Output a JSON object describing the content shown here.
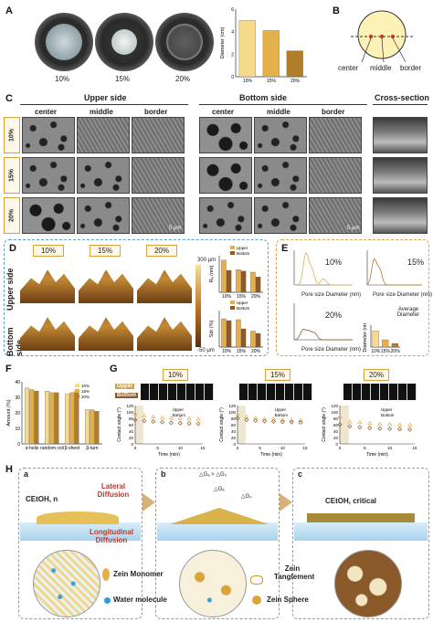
{
  "panels": {
    "A": {
      "label": "A",
      "dish_labels": [
        "10%",
        "15%",
        "20%"
      ]
    },
    "B": {
      "label": "B",
      "positions": [
        "center",
        "middle",
        "border"
      ]
    },
    "C": {
      "label": "C",
      "upper_side": "Upper side",
      "bottom_side": "Bottom side",
      "cross_section": "Cross-section",
      "columns": [
        "center",
        "middle",
        "border"
      ],
      "rows": [
        "10%",
        "15%",
        "20%"
      ],
      "scale_bar": "5 μm"
    },
    "D": {
      "label": "D",
      "concentrations": [
        "10%",
        "15%",
        "20%"
      ],
      "row_labels": [
        "Upper side",
        "Bottom side"
      ],
      "colorbar_top": "300 μm",
      "colorbar_bottom": "-50 μm"
    },
    "E": {
      "label": "E",
      "pcts": [
        "10%",
        "15%",
        "20%"
      ],
      "xlabel": "Pore size Diameter (nm)",
      "ylabel": "Incremental Intrusion (mL/g)",
      "avg_label": "Average Diameter",
      "avg_ylabel": "Diameter (nm)"
    },
    "F": {
      "label": "F"
    },
    "G": {
      "label": "G",
      "concentrations": [
        "10%",
        "15%",
        "20%"
      ],
      "strip_labels": [
        "Upper",
        "Bottom"
      ],
      "legend": [
        "Upper",
        "Bottom"
      ]
    },
    "H": {
      "label": "H",
      "sub_a": "a",
      "sub_b": "b",
      "sub_c": "c",
      "c_etoh_n": "CEtOH, n",
      "lateral": "Lateral Diffusion",
      "longitudinal": "Longitudinal Diffusion",
      "delta": "△Gₐ > △G₀",
      "delta_a": "△Gₐ",
      "delta_b": "△G₀",
      "c_critical": "CEtOH, critical",
      "legend_monomer": "Zein Monomer",
      "legend_water": "Water molecule",
      "legend_tanglement": "Zein Tanglement",
      "legend_sphere": "Zein Sphere"
    }
  },
  "chart_data": [
    {
      "type": "bar",
      "panel": "A",
      "categories": [
        "10%",
        "15%",
        "20%"
      ],
      "values": [
        5.0,
        4.1,
        2.3
      ],
      "ylabel": "Diameter (cm)",
      "ylim": [
        0,
        6
      ],
      "yticks": [
        "0",
        "2",
        "4",
        "6"
      ],
      "colors": [
        "#f6d98a",
        "#e3b04b",
        "#b07d2a"
      ]
    },
    {
      "type": "bar",
      "panel": "D-Ra",
      "categories": [
        "10%",
        "15%",
        "20%"
      ],
      "series": [
        {
          "name": "Upper",
          "values": [
            88,
            62,
            55
          ]
        },
        {
          "name": "Bottom",
          "values": [
            60,
            58,
            42
          ]
        }
      ],
      "ylabel": "Rₐ (nm)",
      "legend": "top",
      "ylim": [
        0,
        100
      ]
    },
    {
      "type": "bar",
      "panel": "D-Sdr",
      "categories": [
        "10%",
        "15%",
        "20%"
      ],
      "series": [
        {
          "name": "Upper",
          "values": [
            62,
            60,
            35
          ]
        },
        {
          "name": "Bottom",
          "values": [
            58,
            40,
            30
          ]
        }
      ],
      "ylabel": "Sdr (%)",
      "legend": "top",
      "ylim": [
        0,
        80
      ]
    },
    {
      "type": "bar",
      "panel": "E-avg",
      "categories": [
        "10%",
        "15%",
        "20%"
      ],
      "values": [
        2200,
        1000,
        500
      ],
      "ylabel": "Diameter (nm)",
      "ylim": [
        0,
        3000
      ],
      "colors": [
        "#f6d98a",
        "#e3b04b",
        "#b07d2a"
      ]
    },
    {
      "type": "bar",
      "panel": "F",
      "categories": [
        "α-helix",
        "random coil",
        "β-sheet",
        "β-turn"
      ],
      "series": [
        {
          "name": "10%",
          "values": [
            36,
            34,
            32,
            22
          ]
        },
        {
          "name": "15%",
          "values": [
            35,
            33,
            33,
            22
          ]
        },
        {
          "name": "20%",
          "values": [
            34,
            33,
            34,
            21
          ]
        }
      ],
      "ylabel": "Amount (%)",
      "ylim": [
        0,
        40
      ],
      "yticks": [
        "0",
        "10",
        "20",
        "30",
        "40"
      ],
      "legend": "top-right",
      "colors": [
        "#f6d98a",
        "#e3b04b",
        "#b07d2a"
      ]
    },
    {
      "type": "scatter",
      "panel": "G-10",
      "x": [
        0,
        2,
        4,
        6,
        8,
        10,
        12,
        14
      ],
      "series": [
        {
          "name": "Upper",
          "values": [
            95,
            88,
            85,
            83,
            81,
            80,
            79,
            78
          ]
        },
        {
          "name": "Bottom",
          "values": [
            75,
            72,
            70,
            68,
            66,
            65,
            64,
            63
          ]
        }
      ],
      "xlabel": "Time (min)",
      "ylabel": "Contact angle (°)",
      "ylim": [
        0,
        120
      ],
      "yticks": [
        "0",
        "20",
        "40",
        "60",
        "80",
        "100",
        "120"
      ],
      "xticks": [
        "0",
        "5",
        "10",
        "15"
      ]
    },
    {
      "type": "scatter",
      "panel": "G-15",
      "x": [
        0,
        2,
        4,
        6,
        8,
        10,
        12,
        14
      ],
      "series": [
        {
          "name": "Upper",
          "values": [
            92,
            85,
            82,
            80,
            78,
            76,
            75,
            74
          ]
        },
        {
          "name": "Bottom",
          "values": [
            80,
            75,
            73,
            71,
            70,
            69,
            68,
            67
          ]
        }
      ],
      "xlabel": "Time (min)",
      "ylabel": "Contact angle (°)",
      "ylim": [
        0,
        120
      ],
      "yticks": [
        "0",
        "20",
        "40",
        "60",
        "80",
        "100",
        "120"
      ],
      "xticks": [
        "0",
        "5",
        "10",
        "15"
      ]
    },
    {
      "type": "scatter",
      "panel": "G-20",
      "x": [
        0,
        2,
        4,
        6,
        8,
        10,
        12,
        14
      ],
      "series": [
        {
          "name": "Upper",
          "values": [
            85,
            70,
            68,
            65,
            63,
            62,
            60,
            60
          ]
        },
        {
          "name": "Bottom",
          "values": [
            60,
            55,
            52,
            50,
            48,
            47,
            46,
            45
          ]
        }
      ],
      "xlabel": "Time (min)",
      "ylabel": "Contact angle (°)",
      "ylim": [
        0,
        120
      ],
      "yticks": [
        "0",
        "20",
        "40",
        "60",
        "80",
        "100",
        "120"
      ],
      "xticks": [
        "0",
        "5",
        "10",
        "15"
      ]
    }
  ]
}
